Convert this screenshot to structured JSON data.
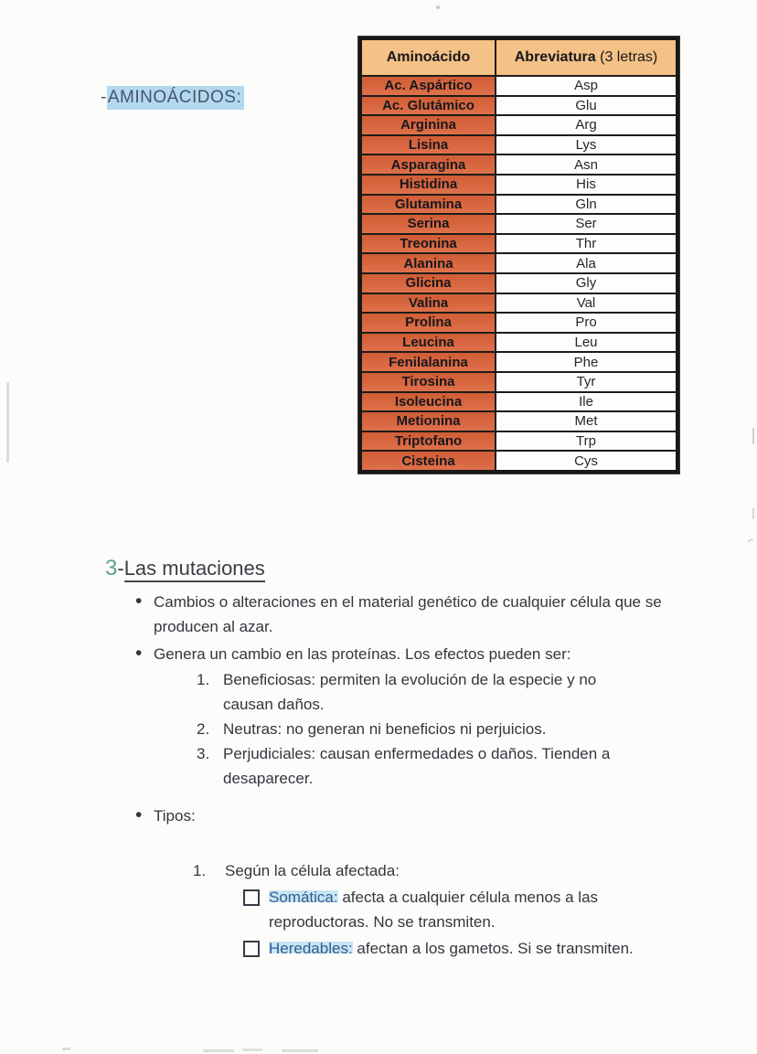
{
  "label": {
    "prefix": "-",
    "highlighted": "AMINOÁCIDOS:",
    "highlight_color": "#b2d9ee",
    "text_color": "#44546b"
  },
  "amino_table": {
    "header_name": "Aminoácido",
    "header_abbr_main": "Abreviatura",
    "header_abbr_note": "(3 letras)",
    "colors": {
      "header_bg": "#f4c186",
      "name_cell_bg": "#d7643c",
      "abbr_cell_bg": "#fdfdfc",
      "border": "#1d1c1a"
    },
    "rows": [
      {
        "name": "Ac. Aspártico",
        "abbr": "Asp"
      },
      {
        "name": "Ac. Glutámico",
        "abbr": "Glu"
      },
      {
        "name": "Arginina",
        "abbr": "Arg"
      },
      {
        "name": "Lisina",
        "abbr": "Lys"
      },
      {
        "name": "Asparagina",
        "abbr": "Asn"
      },
      {
        "name": "Histidina",
        "abbr": "His"
      },
      {
        "name": "Glutamina",
        "abbr": "Gln"
      },
      {
        "name": "Serina",
        "abbr": "Ser"
      },
      {
        "name": "Treonina",
        "abbr": "Thr"
      },
      {
        "name": "Alanina",
        "abbr": "Ala"
      },
      {
        "name": "Glicina",
        "abbr": "Gly"
      },
      {
        "name": "Valina",
        "abbr": "Val"
      },
      {
        "name": "Prolina",
        "abbr": "Pro"
      },
      {
        "name": "Leucina",
        "abbr": "Leu"
      },
      {
        "name": "Fenilalanina",
        "abbr": "Phe"
      },
      {
        "name": "Tirosina",
        "abbr": "Tyr"
      },
      {
        "name": "Isoleucina",
        "abbr": "Ile"
      },
      {
        "name": "Metionina",
        "abbr": "Met"
      },
      {
        "name": "Triptofano",
        "abbr": "Trp"
      },
      {
        "name": "Cisteina",
        "abbr": "Cys"
      }
    ]
  },
  "mutations": {
    "heading": {
      "number": "3",
      "dash": "-",
      "title": "Las mutaciones",
      "number_color": "#5ca188"
    },
    "bullet_changes": "Cambios o alteraciones en el material genético de cualquier célula que se producen al azar.",
    "bullet_effects_intro": "Genera un cambio en las proteínas. Los efectos pueden ser:",
    "effects": [
      "Beneficiosas: permiten la evolución de la especie y no causan daños.",
      "Neutras: no generan ni beneficios ni perjuicios.",
      "Perjudiciales: causan enfermedades o daños. Tienden a desaparecer."
    ],
    "bullet_types": "Tipos:",
    "affected_heading": "Según la célula afectada:",
    "cell_types": [
      {
        "term": "Somática:",
        "text": " afecta a cualquier célula menos a las reproductoras. No se transmiten."
      },
      {
        "term": "Heredables:",
        "text": " afectan a los gametos. Si se transmiten."
      }
    ],
    "term_color": "#2e5e8f",
    "term_highlight": "#c9e4f4"
  }
}
